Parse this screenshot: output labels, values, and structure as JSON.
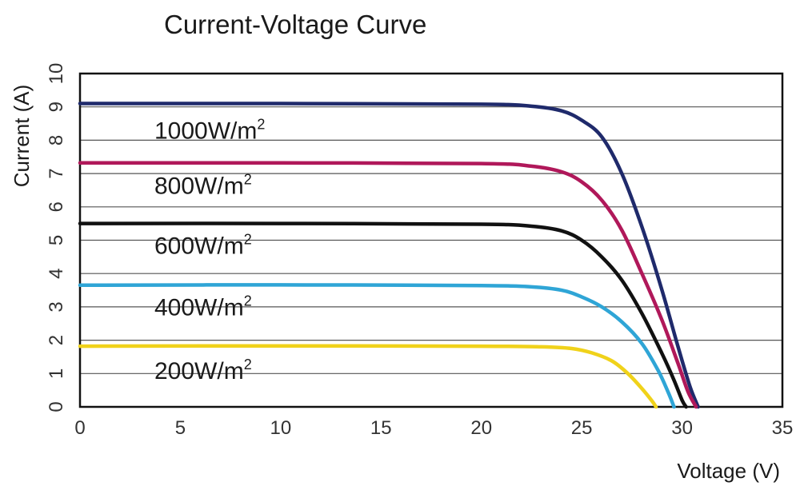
{
  "chart_data": {
    "type": "line",
    "title": "Current-Voltage Curve",
    "xlabel": "Voltage (V)",
    "ylabel": "Current (A)",
    "xlim": [
      0,
      35
    ],
    "ylim": [
      0,
      10
    ],
    "xticks": [
      0,
      5,
      10,
      15,
      20,
      25,
      30,
      35
    ],
    "yticks": [
      0,
      1,
      2,
      3,
      4,
      5,
      6,
      7,
      8,
      9,
      10
    ],
    "grid": "horizontal",
    "legend": "inline labels",
    "unit_superscript": "2",
    "series": [
      {
        "name": "1000W/m",
        "color": "#1f2a6b",
        "points": [
          [
            0,
            9.1
          ],
          [
            10,
            9.1
          ],
          [
            20,
            9.08
          ],
          [
            22.5,
            9.02
          ],
          [
            24,
            8.88
          ],
          [
            25,
            8.6
          ],
          [
            26,
            8.1
          ],
          [
            27,
            7.0
          ],
          [
            28,
            5.4
          ],
          [
            29,
            3.5
          ],
          [
            29.8,
            1.8
          ],
          [
            30.4,
            0.6
          ],
          [
            30.8,
            0
          ]
        ]
      },
      {
        "name": "800W/m",
        "color": "#b0185a",
        "points": [
          [
            0,
            7.32
          ],
          [
            10,
            7.32
          ],
          [
            20,
            7.3
          ],
          [
            22.5,
            7.22
          ],
          [
            24,
            7.05
          ],
          [
            25,
            6.75
          ],
          [
            26,
            6.2
          ],
          [
            27,
            5.3
          ],
          [
            28,
            4.0
          ],
          [
            29,
            2.6
          ],
          [
            29.8,
            1.3
          ],
          [
            30.3,
            0.45
          ],
          [
            30.7,
            0
          ]
        ]
      },
      {
        "name": "600W/m",
        "color": "#111111",
        "points": [
          [
            0,
            5.5
          ],
          [
            10,
            5.5
          ],
          [
            20,
            5.48
          ],
          [
            22.5,
            5.42
          ],
          [
            24,
            5.28
          ],
          [
            25,
            5.0
          ],
          [
            26,
            4.5
          ],
          [
            27,
            3.8
          ],
          [
            28,
            2.8
          ],
          [
            29,
            1.6
          ],
          [
            29.6,
            0.8
          ],
          [
            30.0,
            0.2
          ],
          [
            30.2,
            0
          ]
        ]
      },
      {
        "name": "400W/m",
        "color": "#2fa5d6",
        "points": [
          [
            0,
            3.65
          ],
          [
            10,
            3.66
          ],
          [
            20,
            3.64
          ],
          [
            22.5,
            3.6
          ],
          [
            24,
            3.5
          ],
          [
            25,
            3.3
          ],
          [
            26,
            3.0
          ],
          [
            27,
            2.55
          ],
          [
            28,
            1.9
          ],
          [
            28.8,
            1.1
          ],
          [
            29.3,
            0.45
          ],
          [
            29.6,
            0
          ]
        ]
      },
      {
        "name": "200W/m",
        "color": "#f0d21a",
        "points": [
          [
            0,
            1.82
          ],
          [
            10,
            1.83
          ],
          [
            20,
            1.82
          ],
          [
            23,
            1.8
          ],
          [
            24.5,
            1.75
          ],
          [
            25.5,
            1.62
          ],
          [
            26.5,
            1.38
          ],
          [
            27.3,
            1.0
          ],
          [
            28,
            0.55
          ],
          [
            28.5,
            0.18
          ],
          [
            28.7,
            0
          ]
        ]
      }
    ],
    "series_label_positions": [
      9.05,
      7.4,
      5.6,
      3.75,
      1.85
    ]
  }
}
